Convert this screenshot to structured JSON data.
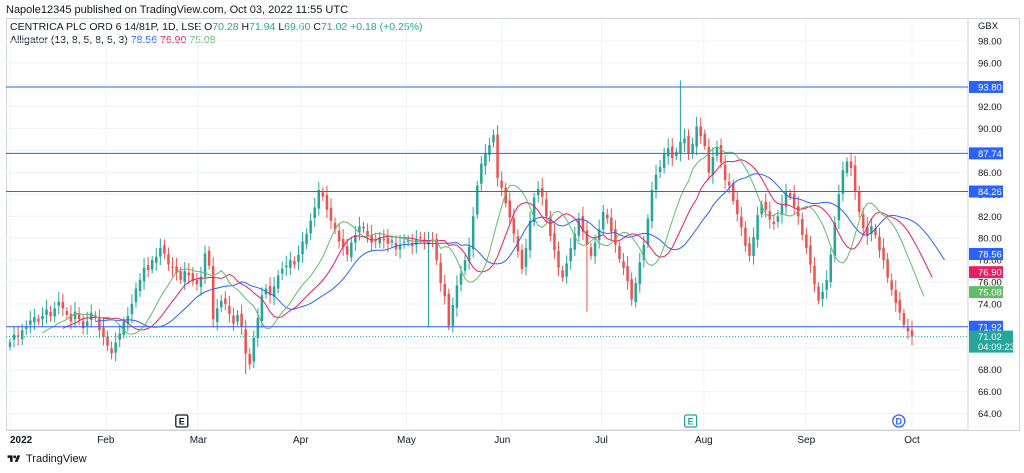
{
  "publisher_line": "Napole12345 published on TradingView.com, Oct 03, 2022 11:55 UTC",
  "footer_brand": "TradingView",
  "legend": {
    "symbol": "CENTRICA PLC ORD 6 14/81P, 1D, LSE",
    "o_label": "O",
    "o_value": "70.28",
    "h_label": "H",
    "h_value": "71.94",
    "l_label": "L",
    "l_value": "69.60",
    "c_label": "C",
    "c_value": "71.02",
    "change": "+0.18 (+0.25%)",
    "indicator": "Alligator (13, 8, 5, 8, 5, 3)",
    "jaw": "78.56",
    "teeth": "76.90",
    "lips": "75.08"
  },
  "colors": {
    "up": "#26a69a",
    "down": "#ef5350",
    "hline": "#2962ff",
    "jaw": "#2962ff",
    "teeth": "#e91e63",
    "lips": "#66bb6a",
    "grid": "#f0f3fa"
  },
  "chart_data": {
    "type": "candlestick",
    "currency": "GBX",
    "ylim": [
      62.5,
      100
    ],
    "y_ticks": [
      "98.00",
      "96.00",
      "94.00",
      "92.00",
      "90.00",
      "88.00",
      "86.00",
      "84.00",
      "82.00",
      "80.00",
      "78.00",
      "76.00",
      "74.00",
      "72.00",
      "70.00",
      "68.00",
      "66.00",
      "64.00"
    ],
    "x_labels": [
      "2022",
      "Feb",
      "Mar",
      "Apr",
      "May",
      "Jun",
      "Jul",
      "Aug",
      "Sep",
      "Oct"
    ],
    "x_label_dates": [
      "2022-01-03",
      "2022-02-01",
      "2022-03-01",
      "2022-04-01",
      "2022-05-03",
      "2022-06-01",
      "2022-07-01",
      "2022-08-01",
      "2022-09-01",
      "2022-10-03"
    ],
    "date_range": [
      "2022-01-03",
      "2022-10-03"
    ],
    "horizontal_lines": [
      93.8,
      87.74,
      84.26,
      71.92
    ],
    "price_labels": [
      {
        "text": "93.80",
        "value": 93.8,
        "color": "#2962ff"
      },
      {
        "text": "87.74",
        "value": 87.74,
        "color": "#2962ff"
      },
      {
        "text": "84.26",
        "value": 84.26,
        "color": "#2962ff"
      },
      {
        "text": "78.56",
        "value": 78.56,
        "color": "#2962ff"
      },
      {
        "text": "76.90",
        "value": 76.9,
        "color": "#e91e63"
      },
      {
        "text": "75.08",
        "value": 75.08,
        "color": "#66bb6a"
      },
      {
        "text": "71.92",
        "value": 71.92,
        "color": "#2962ff"
      }
    ],
    "last_price": {
      "text": "71.02",
      "countdown": "04:09:23",
      "value": 71.02,
      "color": "#26a69a"
    },
    "events": [
      {
        "symbol": "E",
        "date": "2022-02-24",
        "shape": "square",
        "color": "#131722"
      },
      {
        "symbol": "E",
        "date": "2022-07-28",
        "shape": "square",
        "color": "#26a69a"
      },
      {
        "symbol": "D",
        "date": "2022-09-29",
        "shape": "circle",
        "color": "#2962ff"
      }
    ],
    "series": [
      {
        "name": "price",
        "kind": "candles",
        "close": [
          70.5,
          71.2,
          71.0,
          71.6,
          71.9,
          72.5,
          72.8,
          72.4,
          72.9,
          73.5,
          72.9,
          73.6,
          74.2,
          73.6,
          73.0,
          72.4,
          73.3,
          72.6,
          71.8,
          72.4,
          73.2,
          72.8,
          71.6,
          71.0,
          70.2,
          69.5,
          70.5,
          71.3,
          72.4,
          72.9,
          74.0,
          75.4,
          76.2,
          77.3,
          77.1,
          78.0,
          78.3,
          79.1,
          78.6,
          77.6,
          77.3,
          76.8,
          76.2,
          77.0,
          76.6,
          76.1,
          75.8,
          76.5,
          78.6,
          77.5,
          72.6,
          73.6,
          74.3,
          74.0,
          73.1,
          72.2,
          73.0,
          71.9,
          69.5,
          68.5,
          70.9,
          72.7,
          74.8,
          75.4,
          74.8,
          75.6,
          76.6,
          77.2,
          77.5,
          78.0,
          77.6,
          78.5,
          79.7,
          80.4,
          81.6,
          82.8,
          84.4,
          83.8,
          82.6,
          81.6,
          80.8,
          79.7,
          79.2,
          78.5,
          79.6,
          80.3,
          81.1,
          80.9,
          80.2,
          79.6,
          79.7,
          80.1,
          79.8,
          79.5,
          79.8,
          79.0,
          79.4,
          79.7,
          79.8,
          79.3,
          79.9,
          80.0,
          79.6,
          79.7,
          79.8,
          78.0,
          75.9,
          74.7,
          72.0,
          73.9,
          75.7,
          76.8,
          78.0,
          79.2,
          82.0,
          84.8,
          86.8,
          87.7,
          88.5,
          89.4,
          85.5,
          84.6,
          83.2,
          81.9,
          80.4,
          78.8,
          77.2,
          79.1,
          81.6,
          83.7,
          84.5,
          83.8,
          82.0,
          80.2,
          78.9,
          77.3,
          76.4,
          77.7,
          79.1,
          80.4,
          81.8,
          80.6,
          79.4,
          78.4,
          79.6,
          80.8,
          82.4,
          81.8,
          80.6,
          79.4,
          78.1,
          77.3,
          76.1,
          74.4,
          75.9,
          77.8,
          79.4,
          81.8,
          84.4,
          85.8,
          86.5,
          87.7,
          88.2,
          87.3,
          87.9,
          88.8,
          89.1,
          87.7,
          88.6,
          90.2,
          89.3,
          88.4,
          86.0,
          87.4,
          88.3,
          86.9,
          85.3,
          84.8,
          83.4,
          82.2,
          81.0,
          79.3,
          78.4,
          80.1,
          82.1,
          83.1,
          82.6,
          81.7,
          81.3,
          82.0,
          83.1,
          84.2,
          83.8,
          82.9,
          82.0,
          80.3,
          79.1,
          77.6,
          75.8,
          74.3,
          75.1,
          76.2,
          78.5,
          81.4,
          84.0,
          86.2,
          87.0,
          86.4,
          84.3,
          82.4,
          80.9,
          80.2,
          81.1,
          80.3,
          78.9,
          78.0,
          76.4,
          75.3,
          74.1,
          73.2,
          72.1,
          71.5,
          71.02
        ]
      },
      {
        "name": "jaw",
        "kind": "line",
        "values": "13-period smoothed median, shifted 8"
      },
      {
        "name": "teeth",
        "kind": "line",
        "values": "8-period smoothed median, shifted 5"
      },
      {
        "name": "lips",
        "kind": "line",
        "values": "5-period smoothed median, shifted 3"
      }
    ]
  }
}
